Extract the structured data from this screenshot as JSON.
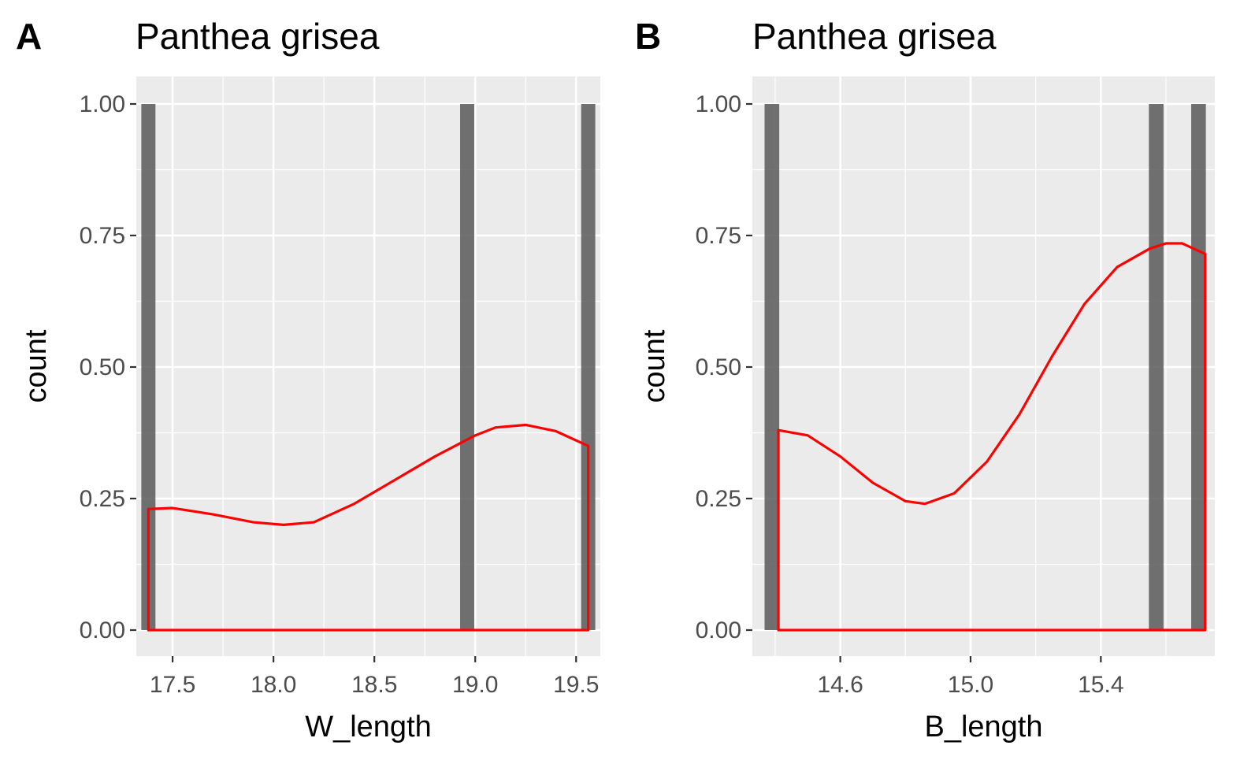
{
  "chart_data": [
    {
      "panel_label": "A",
      "type": "bar",
      "title": "Panthea grisea",
      "xlabel": "W_length",
      "ylabel": "count",
      "xlim": [
        17.32,
        19.62
      ],
      "ylim": [
        0,
        1.0
      ],
      "xticks": [
        17.5,
        18.0,
        18.5,
        19.0,
        19.5
      ],
      "xtick_labels": [
        "17.5",
        "18.0",
        "18.5",
        "19.0",
        "19.5"
      ],
      "yticks": [
        0,
        0.25,
        0.5,
        0.75,
        1.0
      ],
      "ytick_labels": [
        "0.00",
        "0.25",
        "0.50",
        "0.75",
        "1.00"
      ],
      "bar_width": 0.07,
      "bars": [
        {
          "x": 17.38,
          "count": 1
        },
        {
          "x": 18.96,
          "count": 1
        },
        {
          "x": 19.56,
          "count": 1
        }
      ],
      "density_line": {
        "color": "#ff0000",
        "x": [
          17.38,
          17.5,
          17.7,
          17.9,
          18.05,
          18.2,
          18.4,
          18.6,
          18.8,
          19.0,
          19.1,
          19.25,
          19.4,
          19.56
        ],
        "y": [
          0.23,
          0.232,
          0.22,
          0.205,
          0.2,
          0.205,
          0.24,
          0.285,
          0.33,
          0.37,
          0.385,
          0.39,
          0.378,
          0.35
        ]
      }
    },
    {
      "panel_label": "B",
      "type": "bar",
      "title": "Panthea grisea",
      "xlabel": "B_length",
      "ylabel": "count",
      "xlim": [
        14.33,
        15.75
      ],
      "ylim": [
        0,
        1.0
      ],
      "xticks": [
        14.6,
        15.0,
        15.4
      ],
      "xtick_labels": [
        "14.6",
        "15.0",
        "15.4"
      ],
      "yticks": [
        0,
        0.25,
        0.5,
        0.75,
        1.0
      ],
      "ytick_labels": [
        "0.00",
        "0.25",
        "0.50",
        "0.75",
        "1.00"
      ],
      "bar_width": 0.045,
      "bars": [
        {
          "x": 14.39,
          "count": 1
        },
        {
          "x": 15.57,
          "count": 1
        },
        {
          "x": 15.7,
          "count": 1
        }
      ],
      "density_line": {
        "color": "#ff0000",
        "x": [
          14.41,
          14.5,
          14.6,
          14.7,
          14.8,
          14.86,
          14.95,
          15.05,
          15.15,
          15.25,
          15.35,
          15.45,
          15.55,
          15.6,
          15.65,
          15.72
        ],
        "y": [
          0.38,
          0.37,
          0.33,
          0.28,
          0.245,
          0.24,
          0.26,
          0.32,
          0.41,
          0.52,
          0.62,
          0.69,
          0.725,
          0.735,
          0.735,
          0.715
        ]
      }
    }
  ],
  "colors": {
    "panel_background": "#ebebeb",
    "grid": "#ffffff",
    "bar_fill": "#595959",
    "density_line": "#ff0000",
    "tick_text": "#4d4d4d"
  }
}
